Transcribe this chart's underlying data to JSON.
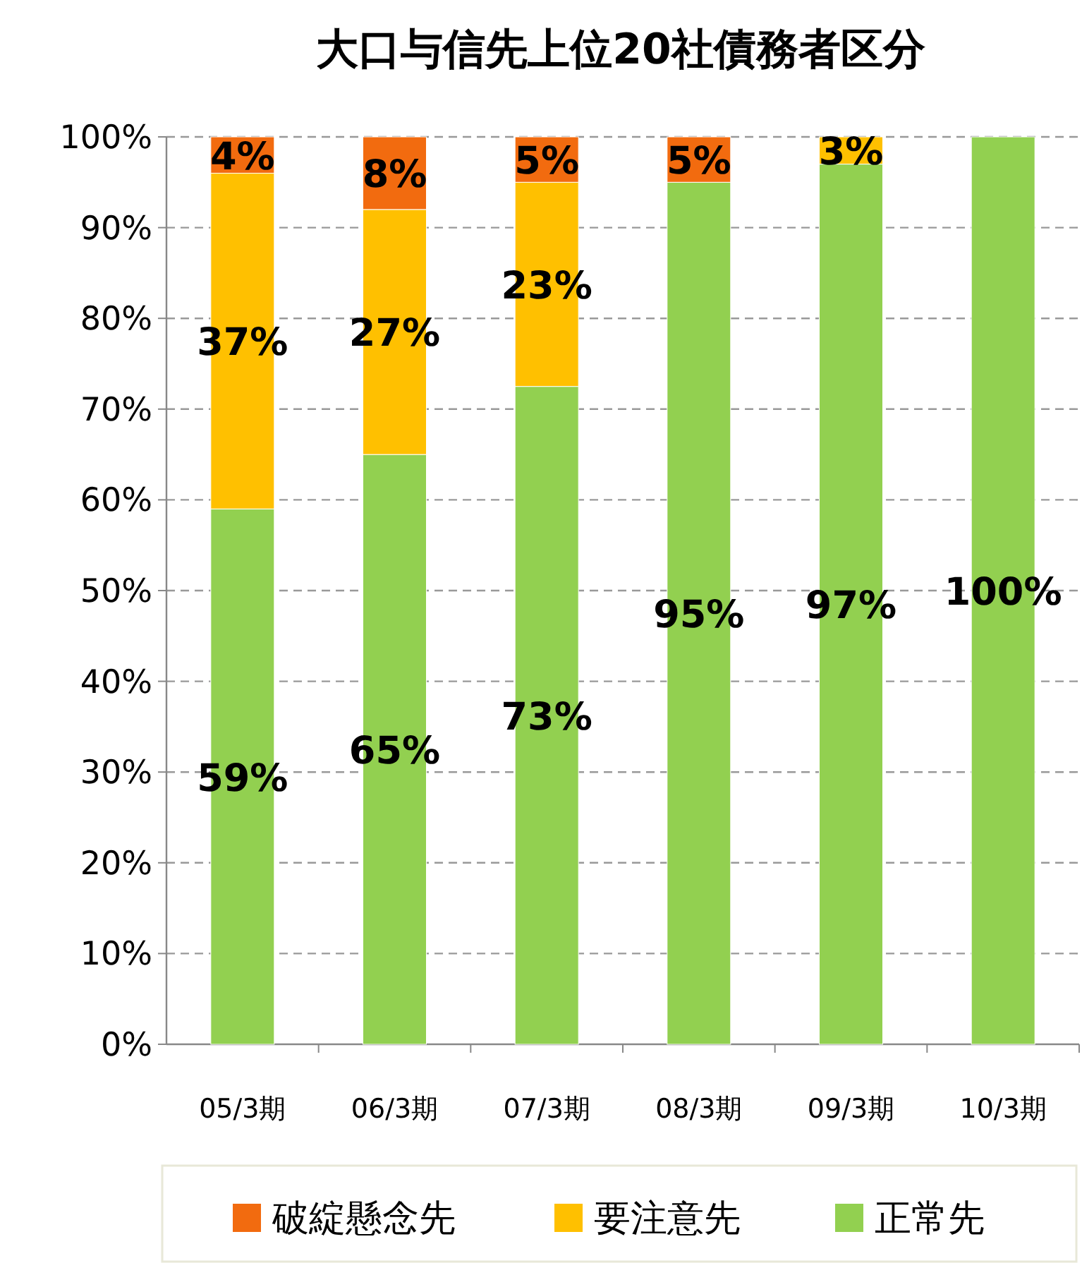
{
  "chart_data": {
    "type": "bar",
    "title": "大口与信先上位20社債務者区分",
    "stacked": true,
    "categories": [
      "05/3期",
      "06/3期",
      "07/3期",
      "08/3期",
      "09/3期",
      "10/3期"
    ],
    "series": [
      {
        "name": "正常先",
        "color": "#92d050",
        "values": [
          59,
          65,
          72.5,
          95,
          97,
          100
        ],
        "value_labels": [
          "59%",
          "65%",
          "73%",
          "95%",
          "97%",
          "100%"
        ]
      },
      {
        "name": "要注意先",
        "color": "#ffc000",
        "values": [
          37,
          27,
          22.5,
          0,
          3,
          0
        ],
        "value_labels": [
          "37%",
          "27%",
          "23%",
          null,
          "3%",
          null
        ]
      },
      {
        "name": "破綻懸念先",
        "color": "#f26b0f",
        "values": [
          4,
          8,
          5,
          5,
          0,
          0
        ],
        "value_labels": [
          "4%",
          "8%",
          "5%",
          "5%",
          null,
          null
        ]
      }
    ],
    "ylim": [
      0,
      100
    ],
    "yticks": [
      {
        "value": 0,
        "label": "0%"
      },
      {
        "value": 10,
        "label": "10%"
      },
      {
        "value": 20,
        "label": "20%"
      },
      {
        "value": 30,
        "label": "30%"
      },
      {
        "value": 40,
        "label": "40%"
      },
      {
        "value": 50,
        "label": "50%"
      },
      {
        "value": 60,
        "label": "60%"
      },
      {
        "value": 70,
        "label": "70%"
      },
      {
        "value": 80,
        "label": "80%"
      },
      {
        "value": 90,
        "label": "90%"
      },
      {
        "value": 100,
        "label": "100%"
      }
    ],
    "grid": "y",
    "legend": "bottom"
  }
}
